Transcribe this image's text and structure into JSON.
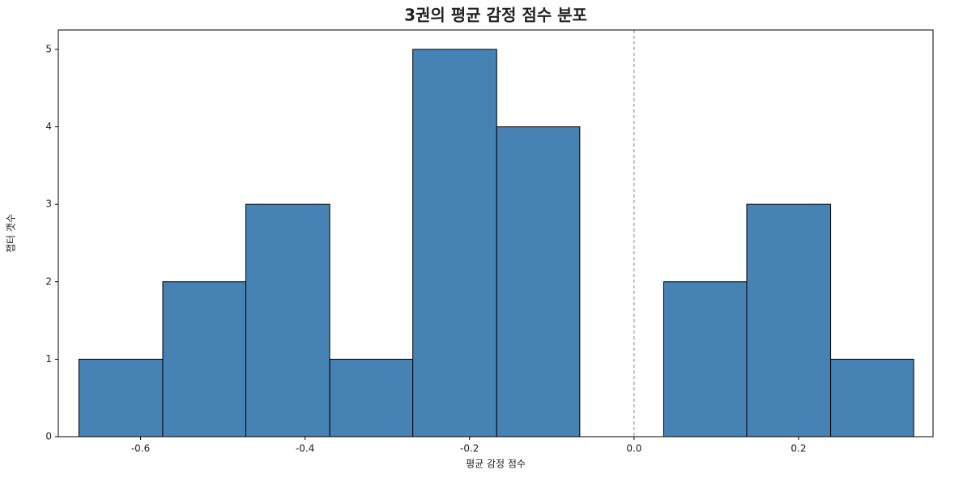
{
  "chart_data": {
    "type": "histogram",
    "title": "3권의 평균 감정 점수 분포",
    "xlabel": "평균 감정 점수",
    "ylabel": "챕터 갯수",
    "bins": [
      -0.675,
      -0.573,
      -0.472,
      -0.37,
      -0.269,
      -0.167,
      -0.066,
      0.036,
      0.137,
      0.239,
      0.34
    ],
    "counts": [
      1,
      2,
      3,
      1,
      5,
      4,
      0,
      2,
      3,
      1
    ],
    "color": "#4682b4",
    "edgecolor": "#000000",
    "xlim": [
      -0.7,
      0.3635
    ],
    "ylim": [
      0,
      5.25
    ],
    "xticks": [
      -0.6,
      -0.4,
      -0.2,
      {
        "value": 0,
        "label": "0.0"
      },
      0.2
    ],
    "yticks": [
      0,
      1,
      2,
      3,
      4,
      5
    ],
    "vline": 0,
    "vline_color": "#808080"
  }
}
